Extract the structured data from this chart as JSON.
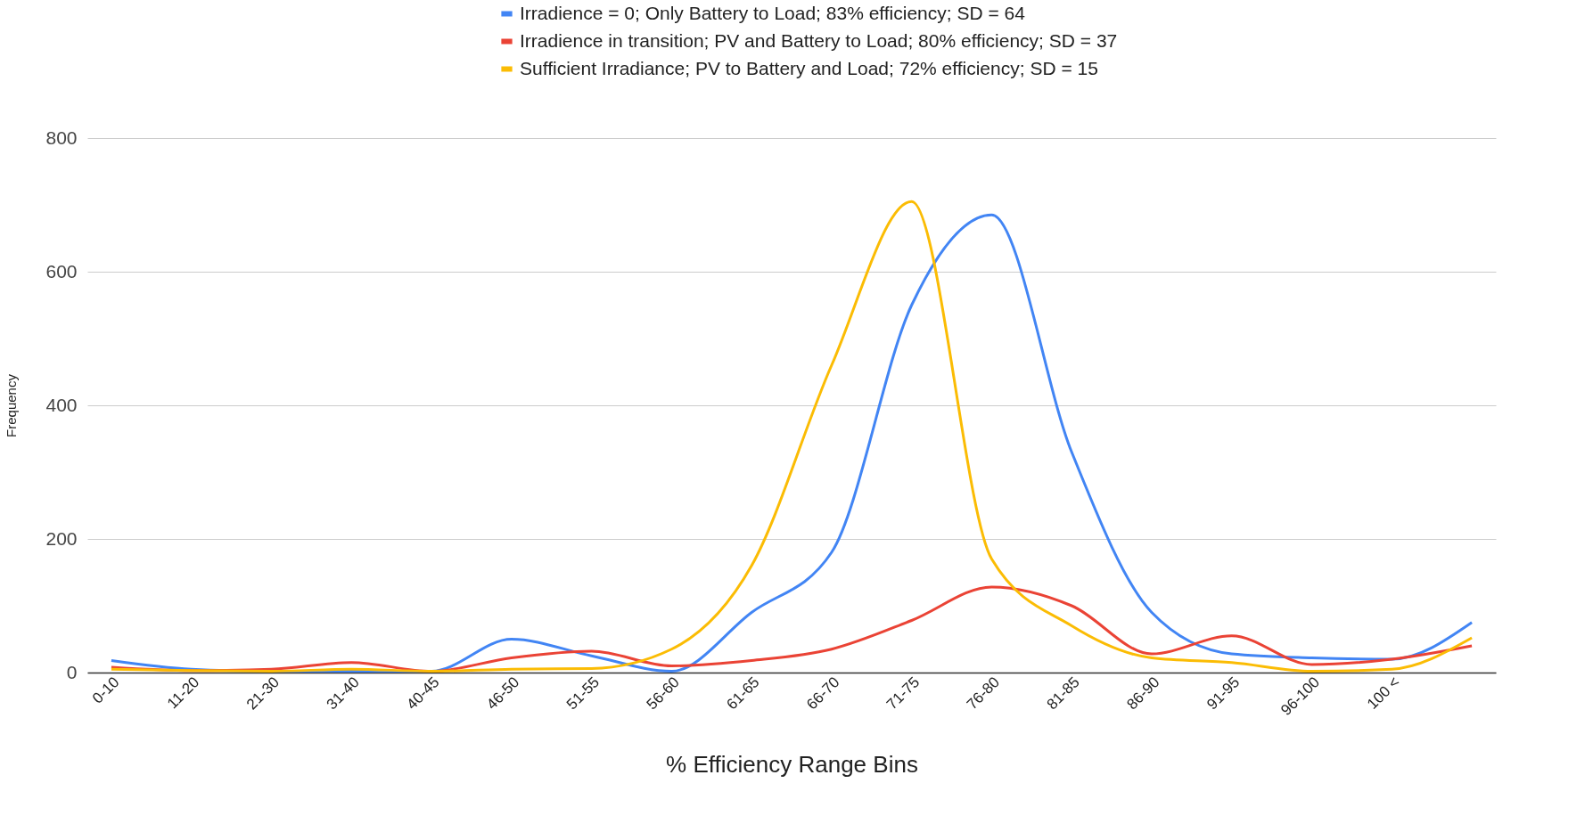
{
  "chart_data": {
    "type": "line",
    "xlabel": "% Efficiency Range Bins",
    "ylabel": "Frequency",
    "categories": [
      "0-10",
      "11-20",
      "21-30",
      "31-40",
      "40-45",
      "46-50",
      "51-55",
      "56-60",
      "61-65",
      "66-70",
      "71-75",
      "76-80",
      "81-85",
      "86-90",
      "91-95",
      "96-100",
      "100 <",
      null
    ],
    "series": [
      {
        "name": "Irradience = 0; Only Battery to Load; 83% efficiency; SD = 64",
        "color": "#4285f4",
        "values": [
          18,
          5,
          2,
          2,
          2,
          50,
          25,
          2,
          90,
          180,
          550,
          685,
          330,
          90,
          28,
          22,
          20,
          75
        ]
      },
      {
        "name": "Irradience in transition; PV and Battery to Load; 80% efficiency; SD = 37",
        "color": "#ea4335",
        "values": [
          8,
          3,
          5,
          15,
          2,
          22,
          32,
          10,
          18,
          35,
          78,
          128,
          100,
          28,
          55,
          12,
          20,
          40
        ]
      },
      {
        "name": "Sufficient Irradiance; PV to Battery and Load; 72% efficiency; SD = 15",
        "color": "#fbbc04",
        "values": [
          5,
          3,
          2,
          5,
          2,
          5,
          6,
          35,
          160,
          460,
          705,
          170,
          70,
          22,
          15,
          2,
          5,
          52
        ]
      }
    ],
    "ylim": [
      0,
      800
    ],
    "yticks": [
      0,
      200,
      400,
      600,
      800
    ],
    "grid": "y",
    "legend": "top",
    "marker": "none",
    "line_style": "solid"
  }
}
